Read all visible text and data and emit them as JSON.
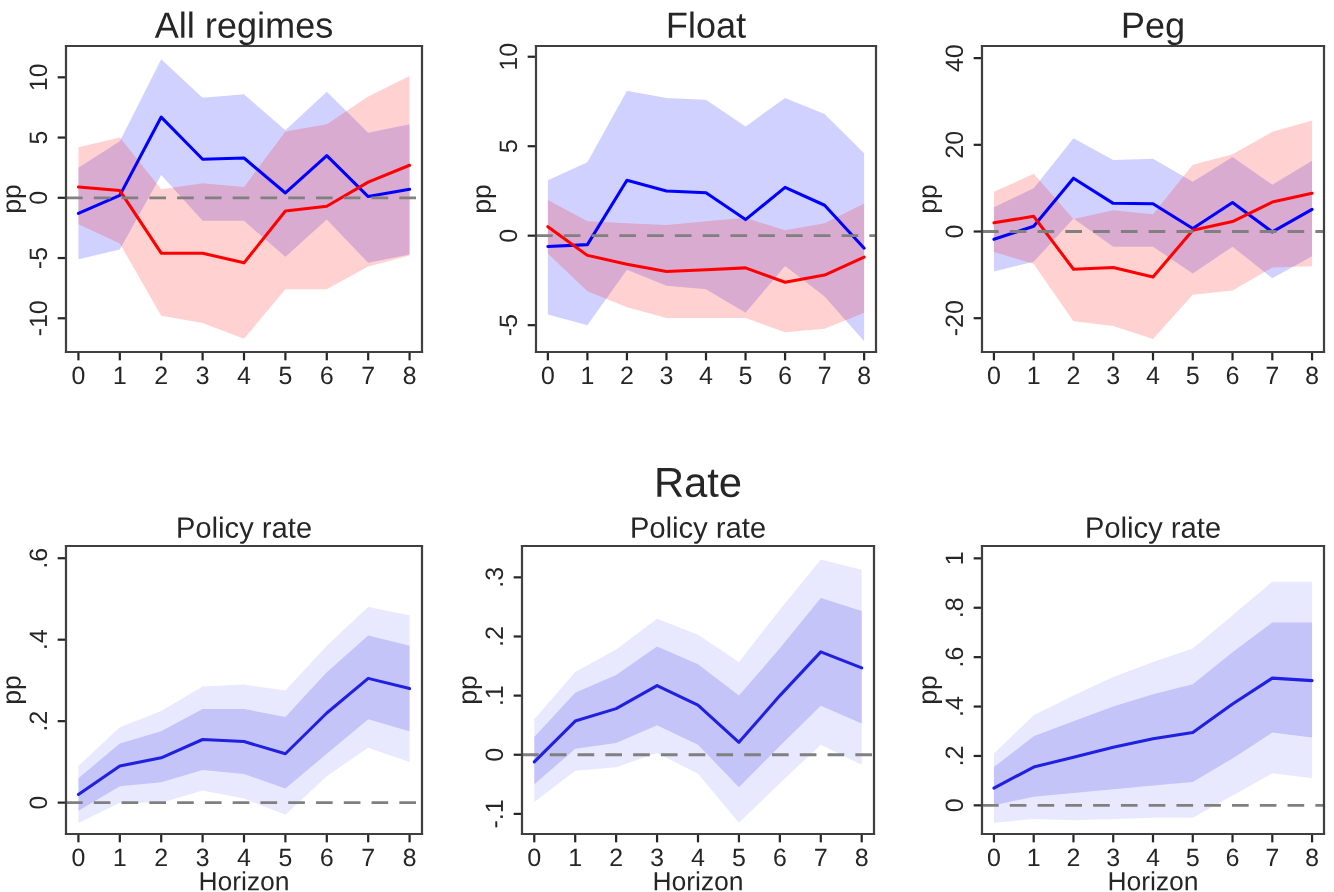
{
  "chart_data": [
    {
      "type": "line",
      "title": "All regimes",
      "ylabel": "pp",
      "x": [
        0,
        1,
        2,
        3,
        4,
        5,
        6,
        7,
        8
      ],
      "xlim": [
        -0.3,
        8.3
      ],
      "xticks": [
        0,
        1,
        2,
        3,
        4,
        5,
        6,
        7,
        8
      ],
      "ylim": [
        -12.8,
        12.6
      ],
      "yticks": [
        {
          "value": -10,
          "label": "-10"
        },
        {
          "value": -5,
          "label": "-5"
        },
        0,
        5,
        10
      ],
      "grid": false,
      "legend": false,
      "ref_lines": [
        {
          "axis": "y",
          "value": 0,
          "color": "#808080",
          "line_style": "dashed"
        }
      ],
      "series": [
        {
          "color": "#0000ff",
          "values": [
            -1.3,
            0.2,
            6.7,
            3.2,
            3.3,
            0.4,
            3.5,
            0.1,
            0.7
          ],
          "lower": [
            -5.1,
            -4.3,
            1.9,
            -1.9,
            -1.9,
            -4.9,
            -1.8,
            -5.4,
            -4.7
          ],
          "upper": [
            2.5,
            4.7,
            11.5,
            8.3,
            8.6,
            5.6,
            8.8,
            5.4,
            6.1
          ]
        },
        {
          "color": "#ff0000",
          "values": [
            0.9,
            0.6,
            -4.6,
            -4.6,
            -5.4,
            -1.1,
            -0.7,
            1.3,
            2.7
          ],
          "lower": [
            -2.2,
            -3.8,
            -9.8,
            -10.4,
            -11.7,
            -7.6,
            -7.6,
            -5.7,
            -4.8
          ],
          "upper": [
            4.2,
            5.0,
            0.7,
            1.2,
            0.9,
            5.5,
            6.1,
            8.4,
            10.1
          ]
        }
      ]
    },
    {
      "type": "line",
      "title": "Float",
      "ylabel": "pp",
      "x": [
        0,
        1,
        2,
        3,
        4,
        5,
        6,
        7,
        8
      ],
      "xlim": [
        -0.3,
        8.3
      ],
      "xticks": [
        0,
        1,
        2,
        3,
        4,
        5,
        6,
        7,
        8
      ],
      "ylim": [
        -6.5,
        10.6
      ],
      "yticks": [
        {
          "value": -5,
          "label": "-5"
        },
        0,
        5,
        10
      ],
      "grid": false,
      "legend": false,
      "ref_lines": [
        {
          "axis": "y",
          "value": 0,
          "color": "#808080",
          "line_style": "dashed"
        }
      ],
      "series": [
        {
          "color": "#0000ff",
          "values": [
            -0.6,
            -0.5,
            3.1,
            2.5,
            2.4,
            0.9,
            2.7,
            1.7,
            -0.7
          ],
          "lower": [
            -4.4,
            -5.0,
            -1.9,
            -2.8,
            -3.0,
            -4.3,
            -1.7,
            -3.4,
            -5.9
          ],
          "upper": [
            3.1,
            4.1,
            8.1,
            7.7,
            7.6,
            6.1,
            7.7,
            6.8,
            4.6
          ]
        },
        {
          "color": "#ff0000",
          "values": [
            0.5,
            -1.1,
            -1.6,
            -2.0,
            -1.9,
            -1.8,
            -2.6,
            -2.2,
            -1.2
          ],
          "lower": [
            -1.0,
            -3.1,
            -4.0,
            -4.6,
            -4.6,
            -4.6,
            -5.4,
            -5.2,
            -4.3
          ],
          "upper": [
            2.0,
            0.8,
            0.7,
            0.6,
            0.8,
            1.0,
            0.3,
            0.7,
            1.8
          ]
        }
      ]
    },
    {
      "type": "line",
      "title": "Peg",
      "ylabel": "pp",
      "x": [
        0,
        1,
        2,
        3,
        4,
        5,
        6,
        7,
        8
      ],
      "xlim": [
        -0.3,
        8.3
      ],
      "xticks": [
        0,
        1,
        2,
        3,
        4,
        5,
        6,
        7,
        8
      ],
      "ylim": [
        -27.8,
        42.8
      ],
      "yticks": [
        {
          "value": -20,
          "label": "-20"
        },
        0,
        20,
        40
      ],
      "grid": false,
      "legend": false,
      "ref_lines": [
        {
          "axis": "y",
          "value": 0,
          "color": "#808080",
          "line_style": "dashed"
        }
      ],
      "series": [
        {
          "color": "#0000ff",
          "values": [
            -1.8,
            1.2,
            12.3,
            6.5,
            6.4,
            0.7,
            6.7,
            -0.1,
            5.1
          ],
          "lower": [
            -9.2,
            -7.0,
            3.0,
            -3.5,
            -3.5,
            -9.7,
            -3.5,
            -10.8,
            -5.7
          ],
          "upper": [
            5.6,
            10,
            21.5,
            16.5,
            16.8,
            11.5,
            17.2,
            10.8,
            16.3
          ]
        },
        {
          "color": "#ff0000",
          "values": [
            2.0,
            3.5,
            -8.7,
            -8.3,
            -10.5,
            0.3,
            2.3,
            6.8,
            8.8
          ],
          "lower": [
            -4.7,
            -7.5,
            -20.7,
            -21.8,
            -24.8,
            -14.6,
            -13.6,
            -8.3,
            -8.0
          ],
          "upper": [
            9.2,
            13.3,
            2.9,
            4.9,
            4.0,
            15.4,
            17.8,
            23,
            25.6
          ]
        }
      ]
    },
    {
      "type": "line",
      "title": "Policy rate",
      "xlabel": "Horizon",
      "ylabel": "pp",
      "x": [
        0,
        1,
        2,
        3,
        4,
        5,
        6,
        7,
        8
      ],
      "xlim": [
        -0.3,
        8.3
      ],
      "xticks": [
        0,
        1,
        2,
        3,
        4,
        5,
        6,
        7,
        8
      ],
      "ylim": [
        -0.077,
        0.63
      ],
      "yticks": [
        0,
        {
          "value": 0.2,
          "label": ".2"
        },
        {
          "value": 0.4,
          "label": ".4"
        },
        {
          "value": 0.6,
          "label": ".6"
        }
      ],
      "grid": false,
      "legend": false,
      "ref_lines": [
        {
          "axis": "y",
          "value": 0,
          "color": "#808080",
          "line_style": "dashed"
        }
      ],
      "series": [
        {
          "color": "#8080ff",
          "values": [
            null,
            null,
            null,
            null,
            null,
            null,
            null,
            null,
            null
          ],
          "lower": [
            -0.05,
            0.0,
            0.0,
            0.03,
            0.01,
            -0.03,
            0.065,
            0.135,
            0.1
          ],
          "upper": [
            0.09,
            0.185,
            0.225,
            0.285,
            0.29,
            0.275,
            0.385,
            0.48,
            0.46
          ]
        },
        {
          "color": "#2020e0",
          "values": [
            0.02,
            0.09,
            0.11,
            0.155,
            0.15,
            0.12,
            0.22,
            0.305,
            0.28
          ],
          "lower": [
            -0.02,
            0.04,
            0.05,
            0.08,
            0.07,
            0.035,
            0.12,
            0.205,
            0.175
          ],
          "upper": [
            0.06,
            0.145,
            0.175,
            0.23,
            0.23,
            0.21,
            0.32,
            0.41,
            0.385
          ]
        }
      ]
    },
    {
      "type": "line",
      "subtitle": "Rate",
      "title": "Policy rate",
      "xlabel": "Horizon",
      "ylabel": "pp",
      "x": [
        0,
        1,
        2,
        3,
        4,
        5,
        6,
        7,
        8
      ],
      "xlim": [
        -0.3,
        8.3
      ],
      "xticks": [
        0,
        1,
        2,
        3,
        4,
        5,
        6,
        7,
        8
      ],
      "ylim": [
        -0.134,
        0.353
      ],
      "yticks": [
        {
          "value": -0.1,
          "label": "-.1"
        },
        0,
        {
          "value": 0.1,
          "label": ".1"
        },
        {
          "value": 0.2,
          "label": ".2"
        },
        {
          "value": 0.3,
          "label": ".3"
        }
      ],
      "grid": false,
      "legend": false,
      "ref_lines": [
        {
          "axis": "y",
          "value": 0,
          "color": "#808080",
          "line_style": "dashed"
        }
      ],
      "series": [
        {
          "color": "#8080ff",
          "values": [
            null,
            null,
            null,
            null,
            null,
            null,
            null,
            null,
            null
          ],
          "lower": [
            -0.08,
            -0.027,
            -0.021,
            0.003,
            -0.032,
            -0.115,
            -0.048,
            0.017,
            -0.017
          ],
          "upper": [
            0.06,
            0.14,
            0.178,
            0.23,
            0.203,
            0.157,
            0.245,
            0.33,
            0.313
          ]
        },
        {
          "color": "#2020e0",
          "values": [
            -0.012,
            0.057,
            0.078,
            0.117,
            0.084,
            0.021,
            0.1,
            0.174,
            0.147
          ],
          "lower": [
            -0.05,
            0.01,
            0.02,
            0.05,
            0.017,
            -0.055,
            0.015,
            0.083,
            0.053
          ],
          "upper": [
            0.03,
            0.105,
            0.135,
            0.183,
            0.153,
            0.1,
            0.18,
            0.265,
            0.243
          ]
        }
      ]
    },
    {
      "type": "line",
      "title": "Policy rate",
      "xlabel": "Horizon",
      "ylabel": "pp",
      "x": [
        0,
        1,
        2,
        3,
        4,
        5,
        6,
        7,
        8
      ],
      "xlim": [
        -0.3,
        8.3
      ],
      "xticks": [
        0,
        1,
        2,
        3,
        4,
        5,
        6,
        7,
        8
      ],
      "ylim": [
        -0.116,
        1.05
      ],
      "yticks": [
        0,
        {
          "value": 0.2,
          "label": ".2"
        },
        {
          "value": 0.4,
          "label": ".4"
        },
        {
          "value": 0.6,
          "label": ".6"
        },
        {
          "value": 0.8,
          "label": ".8"
        },
        1
      ],
      "grid": false,
      "legend": false,
      "ref_lines": [
        {
          "axis": "y",
          "value": 0,
          "color": "#808080",
          "line_style": "dashed"
        }
      ],
      "series": [
        {
          "color": "#8080ff",
          "values": [
            null,
            null,
            null,
            null,
            null,
            null,
            null,
            null,
            null
          ],
          "lower": [
            -0.07,
            -0.055,
            -0.06,
            -0.055,
            -0.05,
            -0.05,
            0.04,
            0.13,
            0.11
          ],
          "upper": [
            0.21,
            0.365,
            0.445,
            0.52,
            0.58,
            0.635,
            0.77,
            0.905,
            0.905
          ]
        },
        {
          "color": "#2020e0",
          "values": [
            0.07,
            0.155,
            0.195,
            0.235,
            0.27,
            0.295,
            0.41,
            0.515,
            0.505
          ],
          "lower": [
            0.0,
            0.035,
            0.05,
            0.065,
            0.08,
            0.095,
            0.19,
            0.295,
            0.275
          ],
          "upper": [
            0.155,
            0.28,
            0.34,
            0.4,
            0.45,
            0.49,
            0.62,
            0.74,
            0.74
          ]
        }
      ]
    }
  ]
}
